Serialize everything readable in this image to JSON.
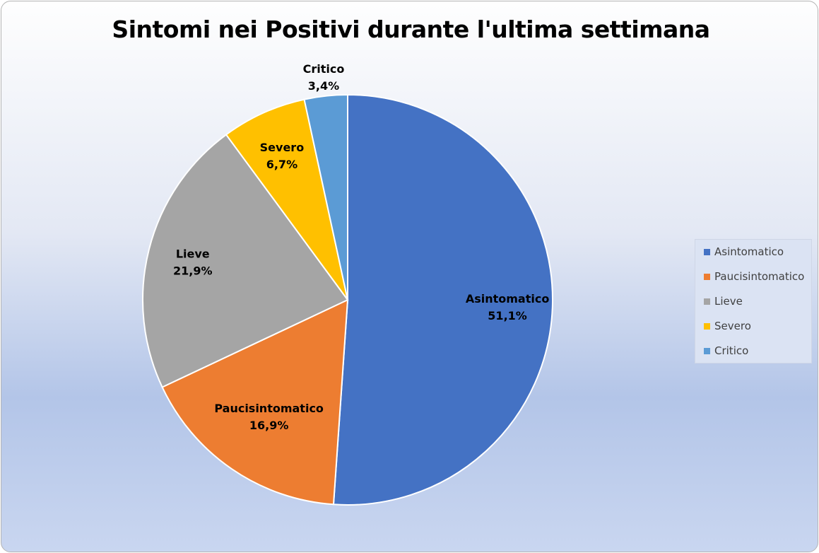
{
  "chart_data": {
    "type": "pie",
    "title": "Sintomi nei Positivi durante l'ultima settimana",
    "categories": [
      "Asintomatico",
      "Paucisintomatico",
      "Lieve",
      "Severo",
      "Critico"
    ],
    "values": [
      51.1,
      16.9,
      21.9,
      6.7,
      3.4
    ],
    "value_labels": [
      "51,1%",
      "16,9%",
      "21,9%",
      "6,7%",
      "3,4%"
    ],
    "colors": [
      "#4472c4",
      "#ed7d31",
      "#a5a5a5",
      "#ffc000",
      "#5b9bd5"
    ],
    "legend": "right"
  }
}
